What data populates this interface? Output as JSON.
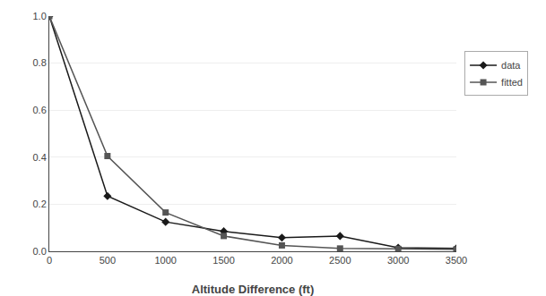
{
  "chart_data": {
    "type": "line",
    "x_label": "Altitude Difference (ft)",
    "x": [
      0,
      500,
      1000,
      1500,
      2000,
      2500,
      3000,
      3500
    ],
    "series": [
      {
        "name": "data",
        "color": "#1a1a1a",
        "marker": "diamond",
        "line_style": "solid",
        "values": [
          1.0,
          0.235,
          0.125,
          0.085,
          0.058,
          0.065,
          0.015,
          0.012
        ]
      },
      {
        "name": "fitted",
        "color": "#555555",
        "marker": "square",
        "line_style": "solid",
        "values": [
          1.0,
          0.405,
          0.165,
          0.065,
          0.025,
          0.012,
          0.01,
          0.008
        ]
      }
    ],
    "xlim": [
      0,
      3500
    ],
    "ylim": [
      0,
      1.0
    ],
    "xticks": [
      0,
      500,
      1000,
      1500,
      2000,
      2500,
      3000,
      3500
    ],
    "yticks": [
      {
        "value": 0,
        "label": "0.0"
      },
      0.2,
      0.4,
      0.6,
      0.8,
      {
        "value": 1.0,
        "label": "1.0"
      }
    ],
    "grid": "y",
    "legend": "upper right"
  }
}
